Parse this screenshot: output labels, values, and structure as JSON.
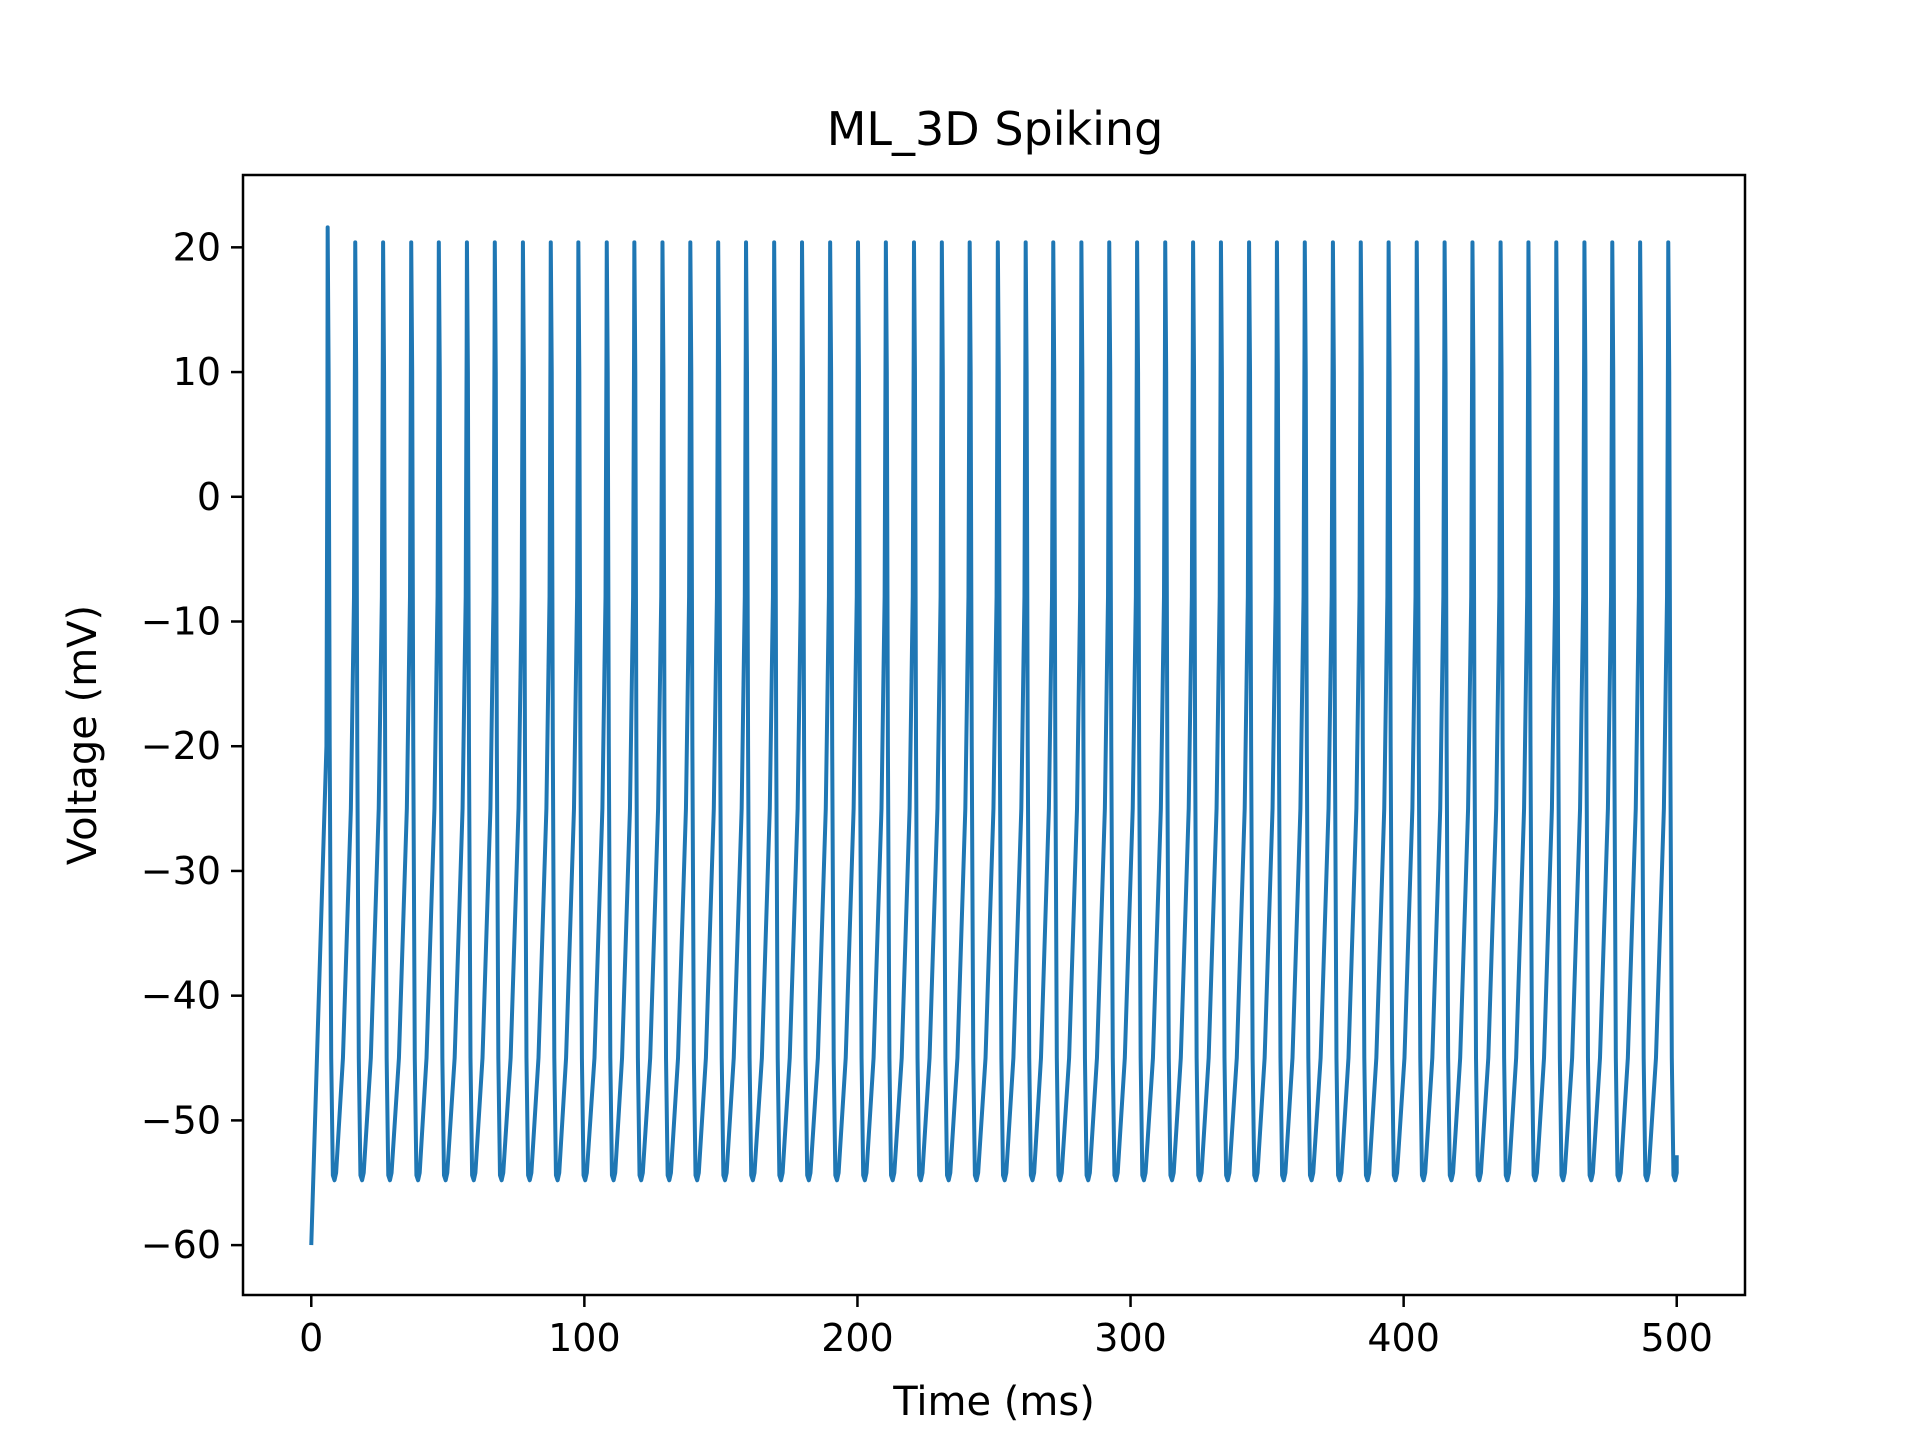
{
  "chart_data": {
    "type": "line",
    "title": "ML_3D Spiking",
    "xlabel": "Time (ms)",
    "ylabel": "Voltage (mV)",
    "xlim": [
      -25,
      525
    ],
    "ylim": [
      -64,
      25.8
    ],
    "xticks": [
      0,
      100,
      200,
      300,
      400,
      500
    ],
    "yticks": [
      -60,
      -50,
      -40,
      -30,
      -20,
      -10,
      0,
      10,
      20
    ],
    "grid": false,
    "legend": "none",
    "series": [
      {
        "color": "#1f77b4",
        "initial_value_mV": -60,
        "first_spike": {
          "time_ms": 6,
          "peak_mV": 21.6
        },
        "spike_times_ms": [
          6,
          16.1,
          26.3,
          36.6,
          46.7,
          57,
          67.2,
          77.5,
          87.7,
          97.8,
          108.2,
          118.3,
          128.6,
          138.8,
          149,
          159.2,
          169.5,
          179.7,
          190,
          200.2,
          210.4,
          220.7,
          230.9,
          241.1,
          251.4,
          261.6,
          271.7,
          282,
          292.2,
          302.4,
          312.7,
          322.9,
          333.1,
          343.4,
          353.6,
          363.8,
          374.1,
          384.3,
          394.5,
          404.8,
          415,
          425.2,
          435.5,
          445.7,
          455.9,
          466.2,
          476.4,
          486.6,
          496.9
        ],
        "spike_peak_mV": 20.4,
        "trough_mV": -54.8,
        "end": {
          "time_ms": 500,
          "value_mV": -52.8
        }
      }
    ]
  }
}
